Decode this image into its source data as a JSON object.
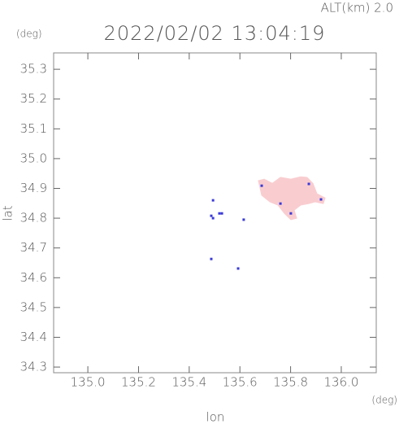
{
  "chart_data": {
    "type": "scatter",
    "altitude": "ALT(km) 2.0",
    "title": "2022/02/02 13:04:19",
    "y_unit": "(deg)",
    "x_unit": "(deg)",
    "xlabel": "lon",
    "ylabel": "lat",
    "xlim": [
      134.865,
      136.138
    ],
    "ylim": [
      34.281,
      35.355
    ],
    "xticks": [
      {
        "value": 135.0,
        "label": "135.0"
      },
      135.2,
      135.4,
      135.6,
      135.8,
      {
        "value": 136.0,
        "label": "136.0"
      }
    ],
    "yticks": [
      34.3,
      34.4,
      34.5,
      34.6,
      34.7,
      34.8,
      34.9,
      {
        "value": 35.0,
        "label": "35.0"
      },
      35.1,
      35.2,
      35.3
    ],
    "series": [
      {
        "mark": "area",
        "color": "#f9cdd0",
        "x": [
          135.673,
          135.696,
          135.728,
          135.76,
          135.801,
          135.84,
          135.865,
          135.888,
          135.904,
          135.936,
          135.929,
          135.897,
          135.872,
          135.84,
          135.814,
          135.824,
          135.801,
          135.776,
          135.75,
          135.718,
          135.686
        ],
        "y": [
          34.926,
          34.931,
          34.917,
          34.937,
          34.931,
          34.939,
          34.937,
          34.917,
          34.882,
          34.868,
          34.849,
          34.855,
          34.849,
          34.844,
          34.827,
          34.8,
          34.795,
          34.816,
          34.844,
          34.855,
          34.877
        ]
      },
      {
        "mark": "point",
        "color": "#3a3ad8",
        "x": [
          135.487,
          135.494,
          135.519,
          135.529,
          135.615,
          135.487,
          135.593,
          135.494,
          135.686,
          135.76,
          135.801,
          135.92,
          135.872
        ],
        "y": [
          34.808,
          34.8,
          34.816,
          34.816,
          34.795,
          34.663,
          34.631,
          34.86,
          34.909,
          34.849,
          34.816,
          34.863,
          34.915
        ]
      }
    ]
  }
}
